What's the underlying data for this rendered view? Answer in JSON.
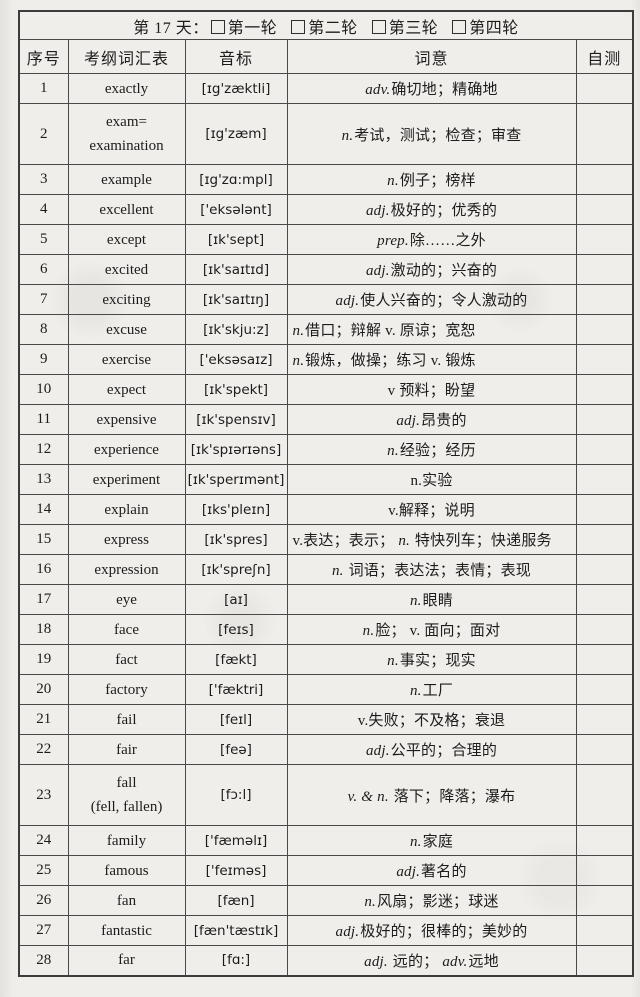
{
  "title": {
    "day_label": "第 17 天：",
    "rounds": [
      "第一轮",
      "第二轮",
      "第三轮",
      "第四轮"
    ]
  },
  "columns": [
    "序号",
    "考纲词汇表",
    "音标",
    "词意",
    "自测"
  ],
  "rows": [
    {
      "no": "1",
      "word": [
        "exactly"
      ],
      "phonetic": "[ɪg'zæktli]",
      "meaning": [
        [
          "adv.",
          1
        ],
        [
          "确切地；精确地",
          0
        ]
      ],
      "align": "center",
      "selftest": ""
    },
    {
      "no": "2",
      "word": [
        "exam=",
        "examination"
      ],
      "phonetic": "[ɪg'zæm]",
      "meaning": [
        [
          "n.",
          1
        ],
        [
          "考试，测试；检查；审查",
          0
        ]
      ],
      "align": "center",
      "selftest": ""
    },
    {
      "no": "3",
      "word": [
        "example"
      ],
      "phonetic": "[ɪg'zɑ:mpl]",
      "meaning": [
        [
          "n.",
          1
        ],
        [
          "例子；榜样",
          0
        ]
      ],
      "align": "center",
      "selftest": ""
    },
    {
      "no": "4",
      "word": [
        "excellent"
      ],
      "phonetic": "['eksələnt]",
      "meaning": [
        [
          "adj.",
          1
        ],
        [
          "极好的；优秀的",
          0
        ]
      ],
      "align": "center",
      "selftest": ""
    },
    {
      "no": "5",
      "word": [
        "except"
      ],
      "phonetic": "[ɪk'sept]",
      "meaning": [
        [
          "prep.",
          1
        ],
        [
          "除……之外",
          0
        ]
      ],
      "align": "center",
      "selftest": ""
    },
    {
      "no": "6",
      "word": [
        "excited"
      ],
      "phonetic": "[ɪk'saɪtɪd]",
      "meaning": [
        [
          "adj.",
          1
        ],
        [
          "激动的；兴奋的",
          0
        ]
      ],
      "align": "center",
      "selftest": ""
    },
    {
      "no": "7",
      "word": [
        "exciting"
      ],
      "phonetic": "[ɪk'saɪtɪŋ]",
      "meaning": [
        [
          "adj.",
          1
        ],
        [
          "使人兴奋的；令人激动的",
          0
        ]
      ],
      "align": "center",
      "selftest": ""
    },
    {
      "no": "8",
      "word": [
        "excuse"
      ],
      "phonetic": "[ɪk'skju:z]",
      "meaning": [
        [
          "n.",
          1
        ],
        [
          "借口；辩解 v. 原谅；宽恕",
          0
        ]
      ],
      "align": "left",
      "selftest": ""
    },
    {
      "no": "9",
      "word": [
        "exercise"
      ],
      "phonetic": "['eksəsaɪz]",
      "meaning": [
        [
          "n.",
          1
        ],
        [
          "锻炼，做操；练习 v. 锻炼",
          0
        ]
      ],
      "align": "left",
      "selftest": ""
    },
    {
      "no": "10",
      "word": [
        "expect"
      ],
      "phonetic": "[ɪk'spekt]",
      "meaning": [
        [
          "v 预料；盼望",
          0
        ]
      ],
      "align": "center",
      "selftest": ""
    },
    {
      "no": "11",
      "word": [
        "expensive"
      ],
      "phonetic": "[ɪk'spensɪv]",
      "meaning": [
        [
          "adj.",
          1
        ],
        [
          "昂贵的",
          0
        ]
      ],
      "align": "center",
      "selftest": ""
    },
    {
      "no": "12",
      "word": [
        "experience"
      ],
      "phonetic": "[ɪk'spɪərɪəns]",
      "meaning": [
        [
          "n.",
          1
        ],
        [
          "经验；经历",
          0
        ]
      ],
      "align": "center",
      "selftest": ""
    },
    {
      "no": "13",
      "word": [
        "experiment"
      ],
      "phonetic": "[ɪk'sperɪmənt]",
      "meaning": [
        [
          "n.实验",
          0
        ]
      ],
      "align": "center",
      "selftest": ""
    },
    {
      "no": "14",
      "word": [
        "explain"
      ],
      "phonetic": "[ɪks'pleɪn]",
      "meaning": [
        [
          "v.解释；说明",
          0
        ]
      ],
      "align": "center",
      "selftest": ""
    },
    {
      "no": "15",
      "word": [
        "express"
      ],
      "phonetic": "[ɪk'spres]",
      "meaning": [
        [
          "v.表达；表示； ",
          0
        ],
        [
          "n.",
          1
        ],
        [
          " 特快列车；快递服务",
          0
        ]
      ],
      "align": "left",
      "selftest": ""
    },
    {
      "no": "16",
      "word": [
        "expression"
      ],
      "phonetic": "[ɪk'spreʃn]",
      "meaning": [
        [
          "n.",
          1
        ],
        [
          " 词语；表达法；表情；表现",
          0
        ]
      ],
      "align": "center",
      "selftest": ""
    },
    {
      "no": "17",
      "word": [
        "eye"
      ],
      "phonetic": "[aɪ]",
      "meaning": [
        [
          "n.",
          1
        ],
        [
          "眼睛",
          0
        ]
      ],
      "align": "center",
      "selftest": ""
    },
    {
      "no": "18",
      "word": [
        "face"
      ],
      "phonetic": "[feɪs]",
      "meaning": [
        [
          "n.",
          1
        ],
        [
          "脸； v. 面向；面对",
          0
        ]
      ],
      "align": "center",
      "selftest": ""
    },
    {
      "no": "19",
      "word": [
        "fact"
      ],
      "phonetic": "[fækt]",
      "meaning": [
        [
          "n.",
          1
        ],
        [
          "事实；现实",
          0
        ]
      ],
      "align": "center",
      "selftest": ""
    },
    {
      "no": "20",
      "word": [
        "factory"
      ],
      "phonetic": "['fæktri]",
      "meaning": [
        [
          "n.",
          1
        ],
        [
          "工厂",
          0
        ]
      ],
      "align": "center",
      "selftest": ""
    },
    {
      "no": "21",
      "word": [
        "fail"
      ],
      "phonetic": "[feɪl]",
      "meaning": [
        [
          "v.失败；不及格；衰退",
          0
        ]
      ],
      "align": "center",
      "selftest": ""
    },
    {
      "no": "22",
      "word": [
        "fair"
      ],
      "phonetic": "[feə]",
      "meaning": [
        [
          "adj.",
          1
        ],
        [
          "公平的；合理的",
          0
        ]
      ],
      "align": "center",
      "selftest": ""
    },
    {
      "no": "23",
      "word": [
        "fall",
        "(fell, fallen)"
      ],
      "phonetic": "[fɔ:l]",
      "meaning": [
        [
          "v. & n.",
          1
        ],
        [
          " 落下；降落；瀑布",
          0
        ]
      ],
      "align": "center",
      "selftest": ""
    },
    {
      "no": "24",
      "word": [
        "family"
      ],
      "phonetic": "['fæməlɪ]",
      "meaning": [
        [
          "n.",
          1
        ],
        [
          "家庭",
          0
        ]
      ],
      "align": "center",
      "selftest": ""
    },
    {
      "no": "25",
      "word": [
        "famous"
      ],
      "phonetic": "['feɪməs]",
      "meaning": [
        [
          "adj.",
          1
        ],
        [
          "著名的",
          0
        ]
      ],
      "align": "center",
      "selftest": ""
    },
    {
      "no": "26",
      "word": [
        "fan"
      ],
      "phonetic": "[fæn]",
      "meaning": [
        [
          "n.",
          1
        ],
        [
          "风扇；影迷；球迷",
          0
        ]
      ],
      "align": "center",
      "selftest": ""
    },
    {
      "no": "27",
      "word": [
        "fantastic"
      ],
      "phonetic": "[fæn'tæstɪk]",
      "meaning": [
        [
          "adj.",
          1
        ],
        [
          "极好的；很棒的；美妙的",
          0
        ]
      ],
      "align": "center",
      "selftest": ""
    },
    {
      "no": "28",
      "word": [
        "far"
      ],
      "phonetic": "[fɑ:]",
      "meaning": [
        [
          "adj.",
          1
        ],
        [
          " 远的； ",
          0
        ],
        [
          "adv.",
          1
        ],
        [
          "远地",
          0
        ]
      ],
      "align": "center",
      "selftest": ""
    }
  ],
  "colors": {
    "paper": "#f0eeea",
    "ink": "#1c1c1c",
    "border": "#494949"
  }
}
